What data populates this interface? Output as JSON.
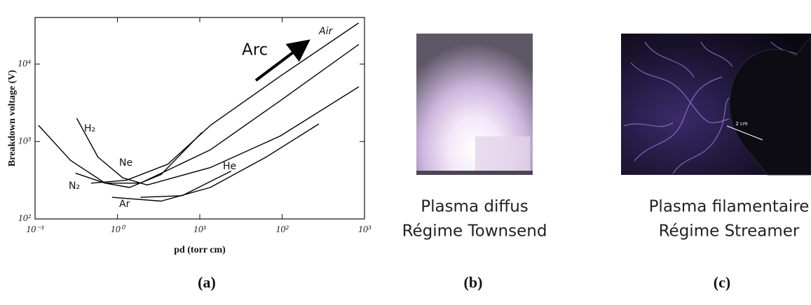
{
  "chart_data": {
    "type": "line",
    "xlabel": "pd (torr cm)",
    "ylabel": "Breakdown voltage (V)",
    "log_x": true,
    "log_y": true,
    "xlim": [
      0.1,
      1000
    ],
    "ylim": [
      100,
      40000
    ],
    "xticks": [
      {
        "value": 0.1,
        "label": "10⁻¹"
      },
      {
        "value": 1,
        "label": "10⁰"
      },
      {
        "value": 10,
        "label": "10¹"
      },
      {
        "value": 100,
        "label": "10²"
      },
      {
        "value": 1000,
        "label": "10³"
      }
    ],
    "yticks": [
      {
        "value": 100,
        "label": "10²"
      },
      {
        "value": 1000,
        "label": "10³"
      },
      {
        "value": 10000,
        "label": "10⁴"
      }
    ],
    "annotations": [
      "Arc"
    ],
    "series": [
      {
        "name": "Air",
        "color": "#000000",
        "x": [
          0.48,
          1.28,
          4.1,
          13.5,
          95,
          850
        ],
        "values": [
          290,
          316,
          510,
          1620,
          7000,
          34000
        ]
      },
      {
        "name": "H₂",
        "color": "#000000",
        "x": [
          0.32,
          0.58,
          1.16,
          2.3,
          13.4,
          95,
          855
        ],
        "values": [
          2000,
          630,
          340,
          275,
          460,
          1180,
          5100
        ]
      },
      {
        "name": "Ne",
        "color": "#000000",
        "x": [
          0.11,
          0.27,
          0.71,
          1.4,
          3.4,
          10.6
        ],
        "values": [
          1620,
          570,
          290,
          255,
          375,
          1310
        ]
      },
      {
        "name": "N₂",
        "color": "#000000",
        "x": [
          0.31,
          0.71,
          1.9,
          13.4,
          95,
          855
        ],
        "values": [
          390,
          290,
          290,
          780,
          3370,
          18000
        ]
      },
      {
        "name": "He",
        "color": "#000000",
        "x": [
          1.9,
          6.1,
          24
        ],
        "values": [
          190,
          200,
          415
        ]
      },
      {
        "name": "Ar",
        "color": "#000000",
        "x": [
          0.86,
          3.4,
          13.4,
          64,
          280
        ],
        "values": [
          190,
          170,
          255,
          630,
          1690
        ]
      }
    ]
  },
  "panels": {
    "labels": [
      "(a)",
      "(b)",
      "(c)"
    ],
    "photo_b": {
      "caption": [
        "Plasma diffus",
        "Régime Townsend"
      ]
    },
    "photo_c": {
      "caption": [
        "Plasma filamentaire",
        "Régime Streamer"
      ],
      "scale": "2 cm"
    }
  }
}
